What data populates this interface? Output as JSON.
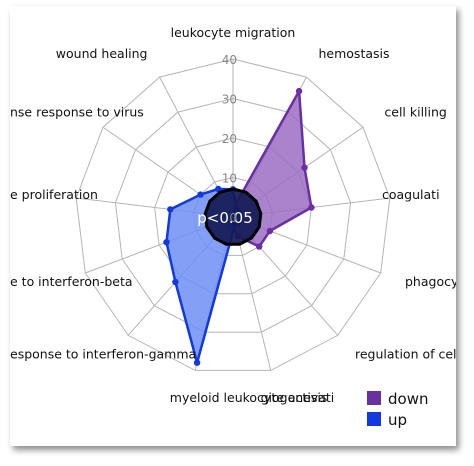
{
  "chart_data": {
    "type": "radar",
    "title": "",
    "categories": [
      "leukocyte migration",
      "hemostasis",
      "cell killing",
      "coagulation",
      "phagocytosis",
      "regulation of cell killing",
      "angiogenesis",
      "myeloid leukocyte activation",
      "response to interferon-gamma",
      "response to interferon-beta",
      "cell proliferation",
      "defense response to virus",
      "wound healing"
    ],
    "category_display": [
      "leukocyte migration",
      "hemostasis",
      "cell killing",
      "coagulati",
      "phagocytos",
      "regulation of cell killing",
      "giogenesis",
      "myeloid leukocyte activati",
      "esponse to interferon-gamma",
      "e to interferon-beta",
      "e proliferation",
      "nse response to virus",
      "wound healing"
    ],
    "r_ticks": [
      "0",
      "10",
      "20",
      "30",
      "40"
    ],
    "rlim": [
      0,
      40
    ],
    "series": [
      {
        "name": "down",
        "color": "#6a2fa0",
        "fill": "#9b6dc4",
        "values": [
          2,
          36,
          22,
          20,
          10,
          10,
          5,
          2,
          2,
          2,
          2,
          2,
          2
        ]
      },
      {
        "name": "up",
        "color": "#1238e0",
        "fill": "#6f8ff5",
        "values": [
          7,
          2,
          2,
          2,
          2,
          2,
          2,
          38,
          22,
          18,
          16,
          10,
          8
        ]
      }
    ],
    "center_annotation": "p<0.05",
    "center_value": 4,
    "legend": {
      "position": "bottom-right",
      "entries": [
        "down",
        "up"
      ]
    },
    "grid": true
  }
}
